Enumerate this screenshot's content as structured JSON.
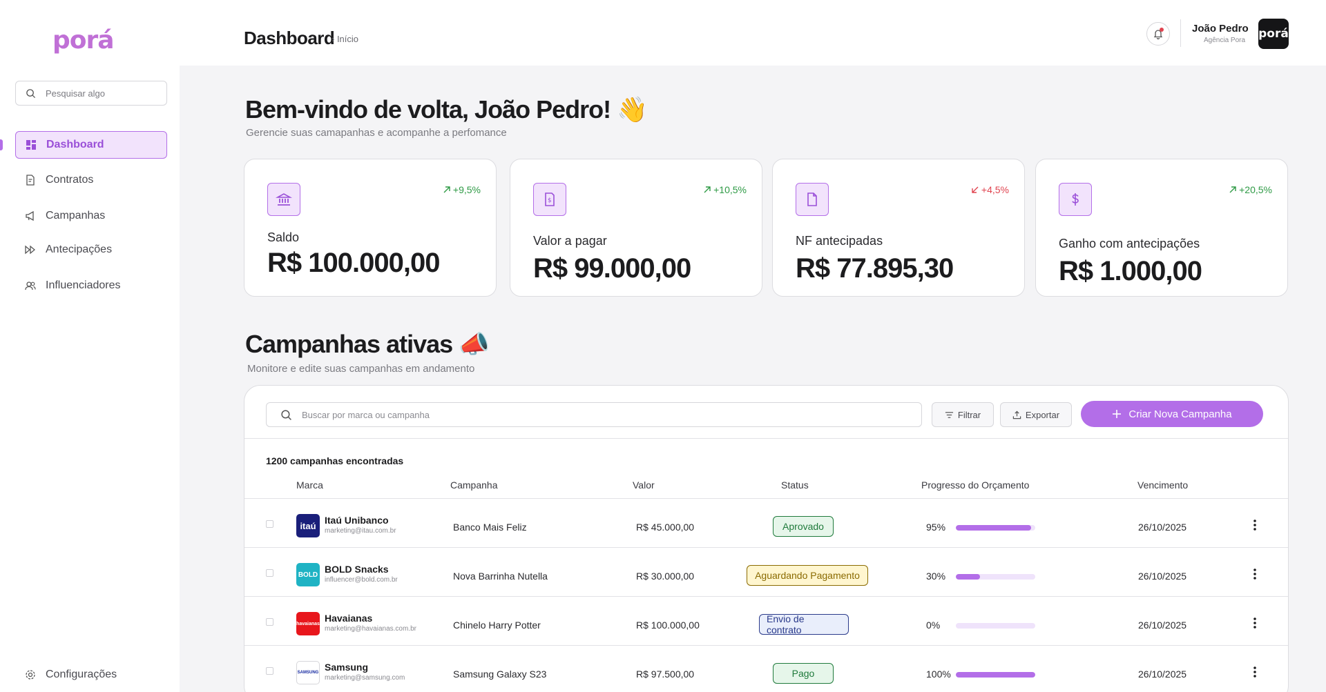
{
  "sidebar": {
    "logo": "porá",
    "search_placeholder": "Pesquisar algo",
    "items": [
      {
        "label": "Dashboard",
        "icon": "dashboard-icon",
        "active": true
      },
      {
        "label": "Contratos",
        "icon": "contract-icon"
      },
      {
        "label": "Campanhas",
        "icon": "megaphone-icon"
      },
      {
        "label": "Antecipações",
        "icon": "fast-forward-icon"
      },
      {
        "label": "Influenciadores",
        "icon": "users-icon"
      }
    ],
    "settings_label": "Configurações"
  },
  "header": {
    "title": "Dashboard",
    "breadcrumb": "› Início",
    "user_name": "João Pedro",
    "user_org": "Agência Pora",
    "avatar_text": "porá"
  },
  "welcome": {
    "title": "Bem-vindo de volta, João Pedro! 👋",
    "subtitle": "Gerencie suas camapanhas e acompanhe a perfomance"
  },
  "cards": [
    {
      "label": "Saldo",
      "value": "R$ 100.000,00",
      "delta": "+9,5%",
      "trend": "up",
      "icon": "bank-icon"
    },
    {
      "label": "Valor a pagar",
      "value": "R$ 99.000,00",
      "delta": "+10,5%",
      "trend": "up",
      "icon": "receipt-icon"
    },
    {
      "label": "NF antecipadas",
      "value": "R$ 77.895,30",
      "delta": "+4,5%",
      "trend": "down",
      "icon": "document-icon"
    },
    {
      "label": "Ganho com antecipações",
      "value": "R$ 1.000,00",
      "delta": "+20,5%",
      "trend": "up",
      "icon": "dollar-icon"
    }
  ],
  "campaigns": {
    "title": "Campanhas ativas 📣",
    "subtitle": "Monitore e edite suas campanhas em andamento",
    "search_placeholder": "Buscar por marca ou campanha",
    "filter_label": "Filtrar",
    "export_label": "Exportar",
    "create_label": "Criar Nova Campanha",
    "count_text": "1200 campanhas encontradas",
    "columns": [
      "Marca",
      "Campanha",
      "Valor",
      "Status",
      "Progresso do Orçamento",
      "Vencimento"
    ],
    "rows": [
      {
        "brand": "Itaú Unibanco",
        "email": "marketing@itau.com.br",
        "logo_text": "itaú",
        "logo_color": "#1a1f7a",
        "campaign": "Banco Mais Feliz",
        "value": "R$ 45.000,00",
        "status": "Aprovado",
        "status_type": "green",
        "progress": 95,
        "progress_label": "95%",
        "due": "26/10/2025"
      },
      {
        "brand": "BOLD Snacks",
        "email": "influencer@bold.com.br",
        "logo_text": "BOLD",
        "logo_color": "#1fb3c4",
        "campaign": "Nova Barrinha Nutella",
        "value": "R$ 30.000,00",
        "status": "Aguardando Pagamento",
        "status_type": "yellow",
        "progress": 30,
        "progress_label": "30%",
        "due": "26/10/2025"
      },
      {
        "brand": "Havaianas",
        "email": "marketing@havaianas.com.br",
        "logo_text": "havaianas",
        "logo_color": "#e8161c",
        "campaign": "Chinelo Harry Potter",
        "value": "R$ 100.000,00",
        "status": "Envio de contrato",
        "status_type": "blue",
        "progress": 0,
        "progress_label": "0%",
        "due": "26/10/2025"
      },
      {
        "brand": "Samsung",
        "email": "marketing@samsung.com",
        "logo_text": "SAMSUNG",
        "logo_color": "#ffffff",
        "campaign": "Samsung Galaxy S23",
        "value": "R$ 97.500,00",
        "status": "Pago",
        "status_type": "green",
        "progress": 100,
        "progress_label": "100%",
        "due": "26/10/2025"
      }
    ]
  }
}
